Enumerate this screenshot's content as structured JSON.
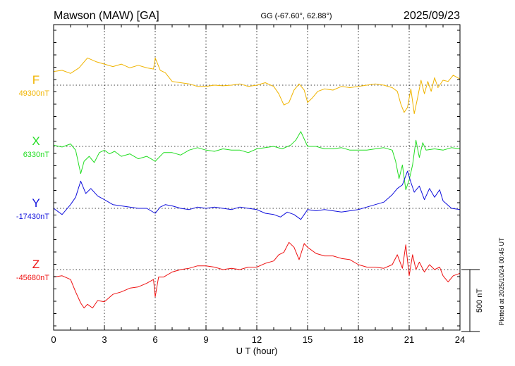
{
  "header": {
    "station": "Mawson (MAW)  [GA]",
    "coords": "GG (-67.60°,  62.88°)",
    "date": "2025/09/23"
  },
  "plotted_note": "Plotted at 2025/10/24 00:45 UT",
  "scale_label": "500 nT",
  "chart_data": {
    "type": "line",
    "xlabel": "U T (hour)",
    "xlim": [
      0,
      24
    ],
    "xticks": [
      "0",
      "3",
      "6",
      "9",
      "12",
      "15",
      "18",
      "21",
      "24"
    ],
    "scale_bar_nT": 500,
    "grid": true,
    "series": [
      {
        "name": "F",
        "baseline_label": "49300nT",
        "baseline_nT": 49300,
        "color": "#f0b400",
        "x": [
          0,
          0.5,
          1.0,
          1.5,
          2.0,
          2.5,
          3.0,
          3.5,
          4.0,
          4.5,
          5.0,
          5.5,
          5.9,
          6.0,
          6.3,
          6.6,
          7.0,
          7.5,
          8.0,
          8.5,
          9.0,
          9.5,
          10.0,
          10.5,
          11.0,
          11.5,
          12.0,
          12.5,
          13.0,
          13.3,
          13.6,
          13.9,
          14.2,
          14.5,
          14.8,
          15.0,
          15.3,
          15.6,
          16.0,
          16.5,
          17.0,
          17.5,
          18.0,
          18.5,
          19.0,
          19.5,
          20.0,
          20.3,
          20.5,
          20.7,
          20.9,
          21.1,
          21.3,
          21.5,
          21.7,
          21.9,
          22.1,
          22.3,
          22.5,
          22.7,
          23.0,
          23.3,
          23.6,
          24.0
        ],
        "y": [
          49410,
          49420,
          49395,
          49440,
          49520,
          49490,
          49470,
          49450,
          49470,
          49440,
          49460,
          49440,
          49430,
          49520,
          49420,
          49400,
          49330,
          49320,
          49310,
          49290,
          49290,
          49300,
          49295,
          49300,
          49310,
          49290,
          49300,
          49320,
          49290,
          49230,
          49140,
          49160,
          49260,
          49310,
          49260,
          49160,
          49200,
          49250,
          49270,
          49260,
          49290,
          49280,
          49290,
          49300,
          49310,
          49300,
          49280,
          49250,
          49150,
          49080,
          49120,
          49270,
          49070,
          49200,
          49340,
          49230,
          49330,
          49250,
          49360,
          49280,
          49340,
          49330,
          49380,
          49350
        ]
      },
      {
        "name": "X",
        "baseline_label": "6330nT",
        "baseline_nT": 6330,
        "color": "#22dd22",
        "x": [
          0,
          0.5,
          1.0,
          1.3,
          1.6,
          1.8,
          2.1,
          2.4,
          2.7,
          3.0,
          3.3,
          3.6,
          4.0,
          4.5,
          5.0,
          5.5,
          6.0,
          6.5,
          7.0,
          7.5,
          8.0,
          8.5,
          9.0,
          9.5,
          10.0,
          10.5,
          11.0,
          11.5,
          12.0,
          12.5,
          13.0,
          13.5,
          14.0,
          14.3,
          14.6,
          15.0,
          15.5,
          16.0,
          16.5,
          17.0,
          17.5,
          18.0,
          18.5,
          19.0,
          19.5,
          20.0,
          20.2,
          20.4,
          20.6,
          20.8,
          21.0,
          21.2,
          21.4,
          21.6,
          21.8,
          22.0,
          22.5,
          23.0,
          23.5,
          24.0
        ],
        "y": [
          6340,
          6325,
          6350,
          6300,
          6110,
          6210,
          6250,
          6200,
          6280,
          6300,
          6270,
          6290,
          6250,
          6270,
          6230,
          6250,
          6210,
          6280,
          6280,
          6260,
          6300,
          6320,
          6300,
          6290,
          6310,
          6300,
          6300,
          6280,
          6310,
          6320,
          6330,
          6310,
          6340,
          6380,
          6450,
          6330,
          6330,
          6310,
          6310,
          6320,
          6300,
          6300,
          6300,
          6310,
          6320,
          6300,
          6210,
          6070,
          6180,
          5980,
          6060,
          6180,
          6380,
          6240,
          6360,
          6300,
          6310,
          6300,
          6320,
          6310
        ]
      },
      {
        "name": "Y",
        "baseline_label": "-17430nT",
        "baseline_nT": -17430,
        "color": "#1010dd",
        "x": [
          0,
          0.5,
          1.0,
          1.3,
          1.6,
          1.9,
          2.2,
          2.6,
          3.0,
          3.5,
          4.0,
          4.5,
          5.0,
          5.5,
          6.0,
          6.3,
          6.6,
          7.0,
          7.5,
          8.0,
          8.5,
          9.0,
          9.5,
          10.0,
          10.5,
          11.0,
          11.5,
          12.0,
          12.5,
          13.0,
          13.4,
          13.8,
          14.2,
          14.6,
          15.0,
          15.5,
          16.0,
          16.5,
          17.0,
          17.5,
          18.0,
          18.5,
          19.0,
          19.5,
          20.0,
          20.3,
          20.6,
          20.9,
          21.1,
          21.3,
          21.6,
          21.9,
          22.2,
          22.5,
          22.8,
          23.0,
          23.5,
          24.0
        ],
        "y": [
          -17430,
          -17480,
          -17400,
          -17340,
          -17210,
          -17310,
          -17270,
          -17330,
          -17360,
          -17400,
          -17410,
          -17420,
          -17430,
          -17430,
          -17470,
          -17420,
          -17400,
          -17410,
          -17430,
          -17440,
          -17420,
          -17430,
          -17420,
          -17430,
          -17440,
          -17420,
          -17430,
          -17440,
          -17470,
          -17480,
          -17500,
          -17460,
          -17480,
          -17520,
          -17440,
          -17450,
          -17440,
          -17450,
          -17460,
          -17450,
          -17440,
          -17420,
          -17400,
          -17380,
          -17320,
          -17270,
          -17240,
          -17130,
          -17220,
          -17300,
          -17250,
          -17360,
          -17270,
          -17340,
          -17280,
          -17370,
          -17430,
          -17440
        ]
      },
      {
        "name": "Z",
        "baseline_label": "-45680nT",
        "baseline_nT": -45680,
        "color": "#ee1111",
        "x": [
          0,
          0.5,
          1.0,
          1.3,
          1.6,
          1.8,
          2.0,
          2.3,
          2.6,
          3.0,
          3.5,
          4.0,
          4.5,
          5.0,
          5.5,
          5.9,
          6.0,
          6.2,
          6.5,
          7.0,
          7.5,
          8.0,
          8.5,
          9.0,
          9.5,
          10.0,
          10.5,
          11.0,
          11.5,
          12.0,
          12.5,
          13.0,
          13.3,
          13.6,
          13.9,
          14.2,
          14.5,
          14.8,
          15.0,
          15.5,
          16.0,
          16.5,
          17.0,
          17.5,
          18.0,
          18.5,
          19.0,
          19.5,
          20.0,
          20.3,
          20.6,
          20.8,
          21.0,
          21.2,
          21.4,
          21.6,
          21.9,
          22.2,
          22.5,
          22.8,
          23.0,
          23.3,
          23.6,
          24.0
        ],
        "y": [
          -45740,
          -45730,
          -45760,
          -45860,
          -45950,
          -45990,
          -45960,
          -45990,
          -45930,
          -45940,
          -45880,
          -45860,
          -45830,
          -45820,
          -45790,
          -45760,
          -45900,
          -45740,
          -45740,
          -45700,
          -45680,
          -45670,
          -45650,
          -45650,
          -45660,
          -45680,
          -45670,
          -45680,
          -45660,
          -45660,
          -45630,
          -45610,
          -45560,
          -45540,
          -45460,
          -45500,
          -45600,
          -45470,
          -45500,
          -45550,
          -45570,
          -45570,
          -45590,
          -45600,
          -45640,
          -45660,
          -45660,
          -45670,
          -45640,
          -45560,
          -45670,
          -45480,
          -45730,
          -45560,
          -45680,
          -45620,
          -45700,
          -45640,
          -45680,
          -45660,
          -45730,
          -45780,
          -45730,
          -45710
        ]
      }
    ]
  }
}
